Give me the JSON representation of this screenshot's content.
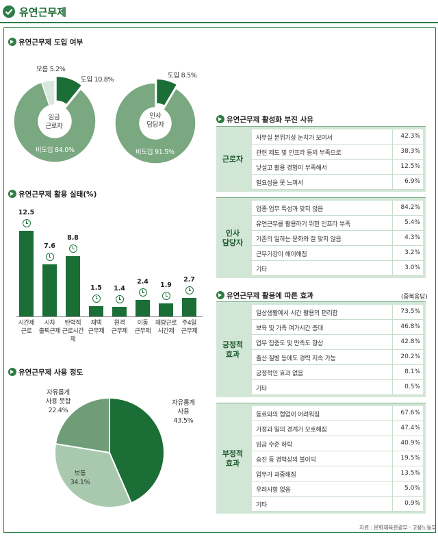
{
  "header": {
    "title": "유연근무제"
  },
  "sections": {
    "adoption": "유연근무제 도입 여부",
    "usage": "유연근무제 활용 실태(%)",
    "degree": "유연근무제 사용 정도",
    "reasons": "유연근무제 활성화 부진 사유",
    "effects": "유연근무제 활용에 따른 효과",
    "multi_note": "(중복응답)"
  },
  "source": "자료 : 문화체육관광부 · 고용노동부",
  "chart_data": [
    {
      "type": "pie",
      "center_label": "임금\n근로자",
      "center_lines": [
        "임금",
        "근로자"
      ],
      "slices": [
        {
          "label": "비도입",
          "value": 84.0,
          "text": "비도입 84.0%",
          "color": "#7aa880"
        },
        {
          "label": "도입",
          "value": 10.8,
          "text": "도입 10.8%",
          "color": "#1b6e36"
        },
        {
          "label": "모름",
          "value": 5.2,
          "text": "모름 5.2%",
          "color": "#d9e8dc"
        }
      ]
    },
    {
      "type": "pie",
      "center_label": "인사\n담당자",
      "center_lines": [
        "인사",
        "담당자"
      ],
      "slices": [
        {
          "label": "비도입",
          "value": 91.5,
          "text": "비도입 91.5%",
          "color": "#7aa880"
        },
        {
          "label": "도입",
          "value": 8.5,
          "text": "도입 8.5%",
          "color": "#1b6e36"
        }
      ]
    },
    {
      "type": "bar",
      "categories": [
        "시간제 근로",
        "시차 출퇴근제",
        "탄력적 근로시간제",
        "재택 근무제",
        "원격 근무제",
        "이동 근무제",
        "재량근로 시간제",
        "주4일 근무제"
      ],
      "category_lines": [
        [
          "시간제",
          "근로"
        ],
        [
          "시차",
          "출퇴근제"
        ],
        [
          "탄력적",
          "근로시간제"
        ],
        [
          "재택",
          "근무제"
        ],
        [
          "원격",
          "근무제"
        ],
        [
          "이동",
          "근무제"
        ],
        [
          "재량근로",
          "시간제"
        ],
        [
          "주4일",
          "근무제"
        ]
      ],
      "values": [
        12.5,
        7.6,
        8.8,
        1.5,
        1.4,
        2.4,
        1.9,
        2.7
      ],
      "value_labels": [
        "12.5",
        "7.6",
        "8.8",
        "1.5",
        "1.4",
        "2.4",
        "1.9",
        "2.7"
      ],
      "ylim": [
        0,
        14
      ]
    },
    {
      "type": "pie",
      "slices": [
        {
          "label": "자유롭게 사용",
          "value": 43.5,
          "lines": [
            "자유롭게",
            "사용",
            "43.5%"
          ],
          "color": "#1b6e36"
        },
        {
          "label": "보통",
          "value": 34.1,
          "lines": [
            "보통",
            "34.1%"
          ],
          "color": "#a8c9ae"
        },
        {
          "label": "자유롭게 사용 못함",
          "value": 22.4,
          "lines": [
            "자유롭게",
            "사용 못함",
            "22.4%"
          ],
          "color": "#6f9d77"
        }
      ]
    },
    {
      "type": "table",
      "title": "유연근무제 활성화 부진 사유",
      "groups": [
        {
          "group": "근로자",
          "group_lines": [
            "근로자"
          ],
          "rows": [
            {
              "label": "사무실 분위기상 눈치가 보여서",
              "value": "42.3%"
            },
            {
              "label": "관련 제도 및 인프라 등의 부족으로",
              "value": "38.3%"
            },
            {
              "label": "낯설고 활용 경험이 부족해서",
              "value": "12.5%"
            },
            {
              "label": "필요성을 못 느껴서",
              "value": "6.9%"
            }
          ]
        },
        {
          "group": "인사 담당자",
          "group_lines": [
            "인사",
            "담당자"
          ],
          "rows": [
            {
              "label": "업종·업무 특성과 맞지 않음",
              "value": "84.2%"
            },
            {
              "label": "유연근무를 활용하기 위한 인프라 부족",
              "value": "5.4%"
            },
            {
              "label": "기존의 일하는 문화와 잘 맞지 않음",
              "value": "4.3%"
            },
            {
              "label": "근무기강이 해이해짐",
              "value": "3.2%"
            },
            {
              "label": "기타",
              "value": "3.0%"
            }
          ]
        }
      ]
    },
    {
      "type": "table",
      "title": "유연근무제 활용에 따른 효과",
      "groups": [
        {
          "group": "긍정적 효과",
          "group_lines": [
            "긍정적",
            "효과"
          ],
          "rows": [
            {
              "label": "일상생활에서 시간 활용의 편리함",
              "value": "73.5%"
            },
            {
              "label": "보육 및 가족 여가시간 증대",
              "value": "46.8%"
            },
            {
              "label": "업무 집중도 및 만족도 향상",
              "value": "42.8%"
            },
            {
              "label": "출산·질병 등에도 경력 지속 가능",
              "value": "20.2%"
            },
            {
              "label": "긍정적인 효과 없음",
              "value": "8.1%"
            },
            {
              "label": "기타",
              "value": "0.5%"
            }
          ]
        },
        {
          "group": "부정적 효과",
          "group_lines": [
            "부정적",
            "효과"
          ],
          "rows": [
            {
              "label": "동료와의 협업이 어려워짐",
              "value": "67.6%"
            },
            {
              "label": "가정과 일의 경계가 모호해짐",
              "value": "47.4%"
            },
            {
              "label": "임금 수준 하락",
              "value": "40.9%"
            },
            {
              "label": "승진 등 경력상의 불이익",
              "value": "19.5%"
            },
            {
              "label": "업무가 과중해짐",
              "value": "13.5%"
            },
            {
              "label": "우려사항 없음",
              "value": "5.0%"
            },
            {
              "label": "기타",
              "value": "0.9%"
            }
          ]
        }
      ]
    }
  ]
}
